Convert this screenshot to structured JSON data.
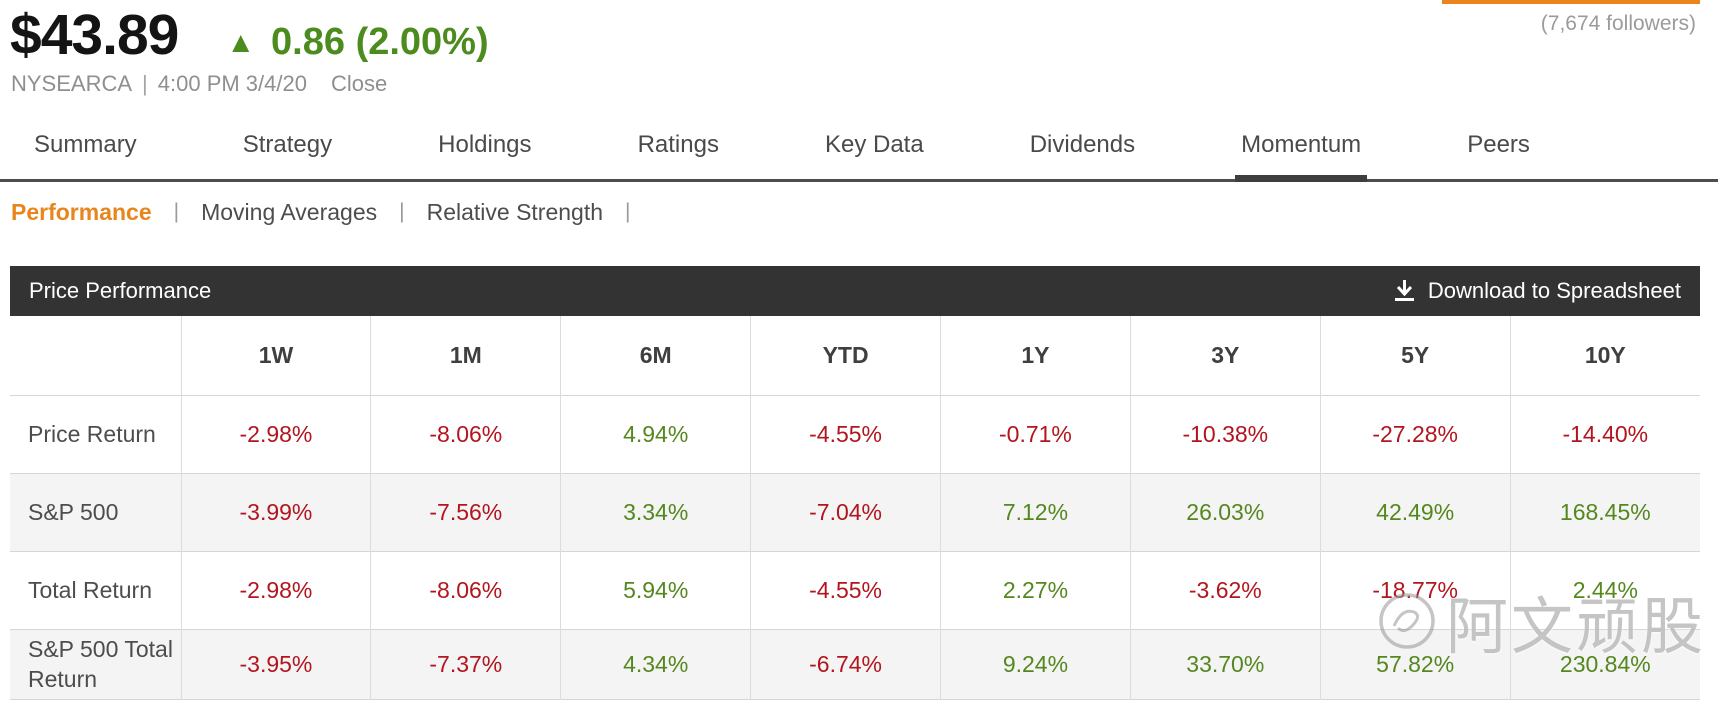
{
  "header": {
    "price": "$43.89",
    "change_arrow": "▲",
    "change_text": "0.86 (2.00%)",
    "exchange": "NYSEARCA",
    "separator": "|",
    "timestamp": "4:00 PM 3/4/20",
    "market_status": "Close",
    "followers": "(7,674 followers)"
  },
  "tabs": [
    {
      "label": "Summary",
      "active": false
    },
    {
      "label": "Strategy",
      "active": false
    },
    {
      "label": "Holdings",
      "active": false
    },
    {
      "label": "Ratings",
      "active": false
    },
    {
      "label": "Key Data",
      "active": false
    },
    {
      "label": "Dividends",
      "active": false
    },
    {
      "label": "Momentum",
      "active": true
    },
    {
      "label": "Peers",
      "active": false
    }
  ],
  "subnav": {
    "separator": "|",
    "items": [
      {
        "label": "Performance",
        "active": true
      },
      {
        "label": "Moving Averages",
        "active": false
      },
      {
        "label": "Relative Strength",
        "active": false
      }
    ]
  },
  "panel": {
    "title": "Price Performance",
    "download_label": "Download to Spreadsheet",
    "download_icon": "download-arrow-icon"
  },
  "table": {
    "columns": [
      "1W",
      "1M",
      "6M",
      "YTD",
      "1Y",
      "3Y",
      "5Y",
      "10Y"
    ],
    "rows": [
      {
        "label": "Price Return",
        "values": [
          "-2.98%",
          "-8.06%",
          "4.94%",
          "-4.55%",
          "-0.71%",
          "-10.38%",
          "-27.28%",
          "-14.40%"
        ]
      },
      {
        "label": "S&P 500",
        "values": [
          "-3.99%",
          "-7.56%",
          "3.34%",
          "-7.04%",
          "7.12%",
          "26.03%",
          "42.49%",
          "168.45%"
        ]
      },
      {
        "label": "Total Return",
        "values": [
          "-2.98%",
          "-8.06%",
          "5.94%",
          "-4.55%",
          "2.27%",
          "-3.62%",
          "-18.77%",
          "2.44%"
        ]
      },
      {
        "label": "S&P 500 Total Return",
        "values": [
          "-3.95%",
          "-7.37%",
          "4.34%",
          "-6.74%",
          "9.24%",
          "33.70%",
          "57.82%",
          "230.84%"
        ]
      }
    ]
  },
  "watermark": {
    "text": "阿文顽股"
  },
  "colors": {
    "positive": "#55871f",
    "negative": "#b2151e",
    "accent_orange": "#e8861d",
    "header_green": "#4c8b1e",
    "panel_bg": "#333333"
  }
}
